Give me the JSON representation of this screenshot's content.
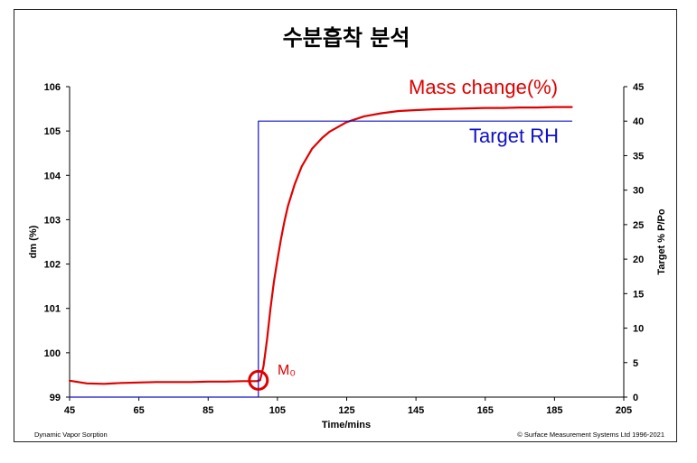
{
  "chart_data": {
    "type": "line",
    "title": "수분흡착 분석",
    "xlabel": "Time/mins",
    "ylabel": "dm (%)",
    "y2label": "Target % P/Po",
    "xlim": [
      45,
      205
    ],
    "ylim": [
      99,
      106
    ],
    "y2lim": [
      0,
      45
    ],
    "x_ticks": [
      "45",
      "65",
      "85",
      "105",
      "125",
      "145",
      "165",
      "185",
      "205"
    ],
    "y_ticks": [
      "99",
      "100",
      "101",
      "102",
      "103",
      "104",
      "105",
      "106"
    ],
    "y2_ticks": [
      "0",
      "5",
      "10",
      "15",
      "20",
      "25",
      "30",
      "35",
      "40",
      "45"
    ],
    "series": [
      {
        "name": "Mass change(%)",
        "axis": "left",
        "color": "#e00000",
        "x": [
          45,
          50,
          55,
          60,
          65,
          70,
          75,
          80,
          85,
          90,
          95,
          99,
          100,
          101,
          102,
          103,
          104,
          105,
          106,
          107,
          108,
          110,
          112,
          115,
          118,
          120,
          125,
          130,
          135,
          140,
          145,
          150,
          155,
          160,
          165,
          170,
          175,
          180,
          185,
          190
        ],
        "y": [
          99.37,
          99.31,
          99.3,
          99.32,
          99.33,
          99.34,
          99.34,
          99.34,
          99.35,
          99.35,
          99.36,
          99.36,
          99.38,
          99.7,
          100.3,
          101.0,
          101.6,
          102.1,
          102.55,
          102.95,
          103.3,
          103.8,
          104.2,
          104.6,
          104.85,
          104.98,
          105.2,
          105.33,
          105.4,
          105.45,
          105.47,
          105.49,
          105.5,
          105.51,
          105.52,
          105.52,
          105.53,
          105.53,
          105.54,
          105.54
        ]
      },
      {
        "name": "Target RH",
        "axis": "right",
        "color": "#1010c8",
        "x": [
          45,
          99.5,
          99.5,
          190
        ],
        "y": [
          0,
          0,
          40,
          40
        ]
      }
    ],
    "annotations": [
      {
        "text": "Mass change(%)",
        "color": "#e00000"
      },
      {
        "text": "Target RH",
        "color": "#1010c8"
      },
      {
        "text": "M₀",
        "color": "#e00000",
        "x": 99.5,
        "y": 99.38
      }
    ],
    "grid": false,
    "legend": "none"
  },
  "footer": {
    "left": "Dynamic Vapor Sorption",
    "right": "© Surface Measurement Systems Ltd 1996-2021"
  }
}
